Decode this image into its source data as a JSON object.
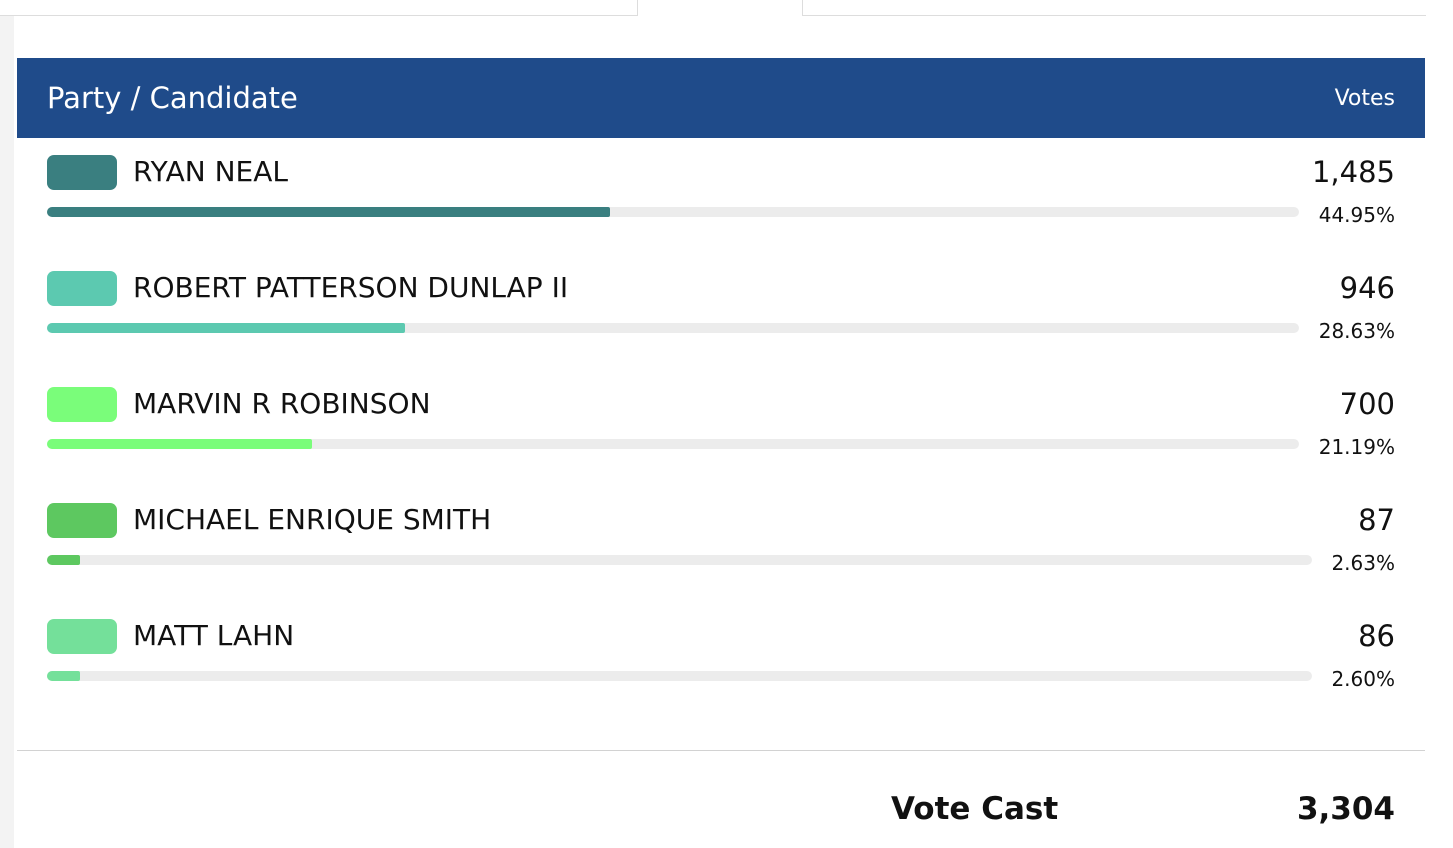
{
  "header": {
    "candidate_label": "Party / Candidate",
    "votes_label": "Votes"
  },
  "candidates": [
    {
      "name": "RYAN NEAL",
      "votes": "1,485",
      "percent": "44.95%",
      "share": 0.4495,
      "color": "#3a7f80"
    },
    {
      "name": "ROBERT PATTERSON DUNLAP II",
      "votes": "946",
      "percent": "28.63%",
      "share": 0.2863,
      "color": "#5cc9b0"
    },
    {
      "name": "MARVIN R ROBINSON",
      "votes": "700",
      "percent": "21.19%",
      "share": 0.2119,
      "color": "#7afd7a"
    },
    {
      "name": "MICHAEL ENRIQUE SMITH",
      "votes": "87",
      "percent": "2.63%",
      "share": 0.0263,
      "color": "#5dc860"
    },
    {
      "name": "MATT LAHN",
      "votes": "86",
      "percent": "2.60%",
      "share": 0.026,
      "color": "#74e09a"
    }
  ],
  "total": {
    "label": "Vote Cast",
    "value": "3,304"
  }
}
